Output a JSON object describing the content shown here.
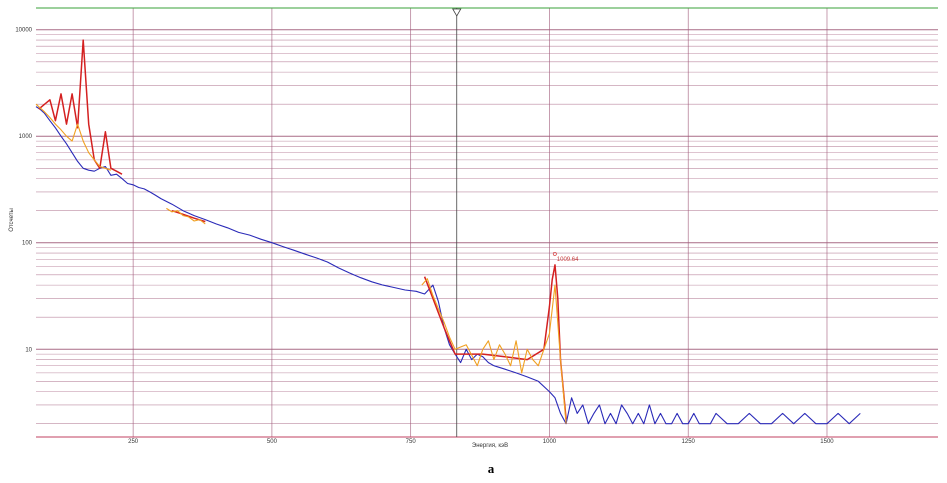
{
  "chart_data": {
    "type": "line",
    "title": "",
    "xlabel": "Энергия, кэВ",
    "ylabel": "Отсчеты",
    "figure_label": "a",
    "xlim": [
      75,
      1700
    ],
    "ylim": [
      1.5,
      16000
    ],
    "yscale": "log",
    "x_ticks": [
      250,
      500,
      750,
      1000,
      1250,
      1500
    ],
    "x_tick_labels": [
      "250",
      "500",
      "750",
      "1000",
      "1250",
      "1500"
    ],
    "y_ticks": [
      10,
      100,
      1000,
      10000
    ],
    "y_tick_labels": [
      "10",
      "100",
      "1000",
      "10000"
    ],
    "grid": true,
    "cursor_x": 833,
    "annotations": [
      {
        "text": "1009.64",
        "x": 1009.64,
        "y": 62
      }
    ],
    "colors": {
      "spectrum": "#2a2ab8",
      "fit": "#d42020",
      "residual": "#f0a020",
      "grid_v": "#a05a7a",
      "grid_h": "#a05a7a",
      "frame_top": "#3aa03a",
      "frame_bottom": "#c04060"
    },
    "series": [
      {
        "role": "spectrum",
        "x": [
          75,
          82,
          90,
          100,
          110,
          120,
          130,
          140,
          150,
          160,
          170,
          180,
          190,
          200,
          210,
          220,
          230,
          240,
          250,
          260,
          270,
          280,
          290,
          300,
          320,
          340,
          360,
          380,
          400,
          420,
          440,
          460,
          480,
          500,
          520,
          540,
          560,
          580,
          600,
          620,
          640,
          660,
          680,
          700,
          720,
          740,
          760,
          775,
          790,
          800,
          810,
          820,
          830,
          840,
          850,
          860,
          870,
          880,
          890,
          900,
          920,
          940,
          960,
          980,
          1000,
          1010,
          1020,
          1030,
          1040,
          1050,
          1060,
          1070,
          1080,
          1090,
          1100,
          1110,
          1120,
          1130,
          1140,
          1150,
          1160,
          1170,
          1180,
          1190,
          1200,
          1210,
          1220,
          1230,
          1240,
          1250,
          1260,
          1270,
          1280,
          1290,
          1300,
          1320,
          1340,
          1360,
          1380,
          1400,
          1420,
          1440,
          1460,
          1480,
          1500,
          1520,
          1540,
          1560
        ],
        "y": [
          1900,
          1800,
          1650,
          1400,
          1200,
          1000,
          850,
          700,
          580,
          500,
          480,
          470,
          500,
          520,
          430,
          440,
          400,
          360,
          350,
          330,
          320,
          300,
          280,
          260,
          230,
          200,
          180,
          165,
          150,
          138,
          125,
          118,
          108,
          100,
          92,
          85,
          78,
          72,
          66,
          58,
          52,
          47,
          43,
          40,
          38,
          36,
          35,
          33,
          40,
          28,
          16,
          11,
          9,
          7.5,
          10,
          8,
          9,
          8.5,
          7.5,
          7,
          6.5,
          6,
          5.5,
          5,
          4,
          3.5,
          2.5,
          2,
          3.5,
          2.5,
          3,
          2,
          2.5,
          3,
          2,
          2.5,
          2,
          3,
          2.5,
          2,
          2.5,
          2,
          3,
          2,
          2.5,
          2,
          2,
          2.5,
          2,
          2,
          2.5,
          2,
          2,
          2,
          2.5,
          2,
          2,
          2.5,
          2,
          2,
          2.5,
          2,
          2.5,
          2,
          2,
          2.5,
          2,
          2.5
        ]
      },
      {
        "role": "fit",
        "x": [
          80,
          100,
          110,
          120,
          130,
          140,
          150,
          160,
          170,
          180,
          190,
          200,
          210,
          220,
          230
        ],
        "y": [
          1800,
          2200,
          1400,
          2500,
          1300,
          2500,
          1200,
          8000,
          1300,
          600,
          500,
          1100,
          500,
          470,
          440
        ]
      },
      {
        "role": "fit",
        "x": [
          320,
          340,
          360,
          380
        ],
        "y": [
          200,
          185,
          170,
          158
        ]
      },
      {
        "role": "fit",
        "x": [
          775,
          790,
          800,
          810,
          820,
          830,
          850,
          880,
          920,
          960,
          990,
          1000,
          1005,
          1010,
          1015,
          1020,
          1030
        ],
        "y": [
          48,
          30,
          22,
          16,
          12,
          9,
          9,
          9,
          8.5,
          8,
          10,
          25,
          45,
          62,
          30,
          8,
          2.2
        ]
      },
      {
        "role": "residual",
        "x": [
          75,
          90,
          100,
          110,
          120,
          130,
          140,
          150,
          160,
          170,
          180,
          190,
          200,
          210
        ],
        "y": [
          2000,
          1700,
          1500,
          1300,
          1150,
          1000,
          900,
          1300,
          900,
          700,
          600,
          520,
          500,
          480
        ]
      },
      {
        "role": "residual",
        "x": [
          310,
          320,
          330,
          340,
          350,
          360,
          370,
          380
        ],
        "y": [
          210,
          195,
          200,
          180,
          175,
          160,
          165,
          150
        ]
      },
      {
        "role": "residual",
        "x": [
          770,
          780,
          790,
          800,
          810,
          820,
          830,
          850,
          870,
          880,
          890,
          900,
          910,
          920,
          930,
          940,
          950,
          960,
          970,
          980,
          990,
          1000,
          1010,
          1020,
          1030
        ],
        "y": [
          40,
          46,
          32,
          24,
          18,
          13,
          10,
          11,
          7,
          10,
          12,
          8,
          11,
          9,
          7,
          12,
          6,
          10,
          8,
          7,
          10,
          14,
          40,
          8,
          2
        ]
      }
    ]
  }
}
